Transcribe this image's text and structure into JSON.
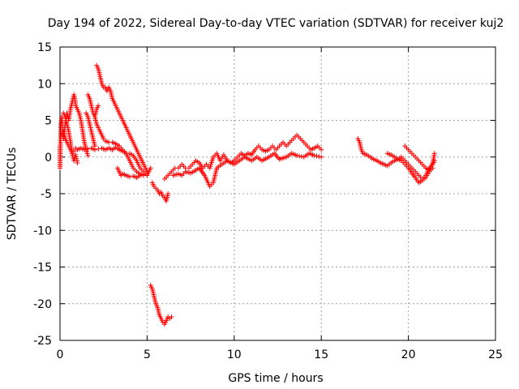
{
  "chart_data": {
    "type": "scatter",
    "title": "Day 194 of 2022, Sidereal Day-to-day VTEC variation (SDTVAR) for receiver kuj2",
    "xlabel": "GPS time / hours",
    "ylabel": "SDTVAR / TECUs",
    "xlim": [
      0,
      25
    ],
    "ylim": [
      -25,
      15
    ],
    "xticks": [
      0,
      5,
      10,
      15,
      20,
      25
    ],
    "yticks": [
      -25,
      -20,
      -15,
      -10,
      -5,
      0,
      5,
      10,
      15
    ],
    "grid": true,
    "marker": "+",
    "color": "#ff0000",
    "series": [
      {
        "name": "SDTVAR",
        "segments": [
          [
            [
              0.0,
              1.5
            ],
            [
              0.0,
              -1.5
            ],
            [
              0.05,
              4.5
            ],
            [
              0.1,
              5.5
            ],
            [
              0.15,
              4.0
            ],
            [
              0.2,
              2.5
            ],
            [
              0.3,
              4.5
            ],
            [
              0.4,
              6.0
            ],
            [
              0.5,
              5.0
            ],
            [
              0.6,
              6.5
            ],
            [
              0.7,
              7.5
            ],
            [
              0.8,
              8.5
            ],
            [
              0.85,
              8.0
            ],
            [
              0.9,
              7.0
            ],
            [
              1.0,
              6.5
            ],
            [
              1.1,
              6.0
            ],
            [
              1.2,
              5.0
            ],
            [
              1.3,
              3.5
            ],
            [
              1.4,
              2.0
            ],
            [
              1.5,
              1.0
            ],
            [
              1.6,
              0.2
            ]
          ],
          [
            [
              0.1,
              3.0
            ],
            [
              0.2,
              3.5
            ],
            [
              0.3,
              2.5
            ],
            [
              0.4,
              2.0
            ],
            [
              0.5,
              1.5
            ],
            [
              0.6,
              1.0
            ],
            [
              0.7,
              0.5
            ],
            [
              0.8,
              0.8
            ],
            [
              0.9,
              1.2
            ],
            [
              1.0,
              1.0
            ],
            [
              1.2,
              1.2
            ],
            [
              1.4,
              1.0
            ],
            [
              1.6,
              1.1
            ],
            [
              1.8,
              1.2
            ],
            [
              2.0,
              1.0
            ],
            [
              2.2,
              1.1
            ],
            [
              2.4,
              1.2
            ],
            [
              2.6,
              1.0
            ],
            [
              2.8,
              1.2
            ],
            [
              3.0,
              1.0
            ],
            [
              3.2,
              1.3
            ],
            [
              3.4,
              1.0
            ],
            [
              3.6,
              0.8
            ],
            [
              3.8,
              0.5
            ],
            [
              4.0,
              0.5
            ],
            [
              4.2,
              0.2
            ],
            [
              4.4,
              -0.5
            ],
            [
              4.6,
              -1.5
            ],
            [
              4.8,
              -2.0
            ],
            [
              5.0,
              -2.5
            ],
            [
              5.2,
              -1.5
            ]
          ],
          [
            [
              0.2,
              6.0
            ],
            [
              0.3,
              5.5
            ],
            [
              0.4,
              4.5
            ],
            [
              0.5,
              3.5
            ],
            [
              0.6,
              2.0
            ],
            [
              0.7,
              0.5
            ],
            [
              0.8,
              -0.5
            ],
            [
              0.9,
              0.3
            ],
            [
              1.0,
              -0.8
            ]
          ],
          [
            [
              1.5,
              6.0
            ],
            [
              1.6,
              5.5
            ],
            [
              1.7,
              4.5
            ],
            [
              1.8,
              3.5
            ],
            [
              1.9,
              2.5
            ],
            [
              2.0,
              1.5
            ]
          ],
          [
            [
              2.0,
              5.5
            ],
            [
              2.1,
              4.5
            ],
            [
              2.2,
              4.0
            ],
            [
              2.3,
              3.5
            ],
            [
              2.4,
              3.0
            ],
            [
              2.5,
              2.5
            ],
            [
              2.6,
              2.2
            ],
            [
              2.8,
              2.0
            ],
            [
              3.0,
              2.0
            ],
            [
              3.2,
              1.8
            ],
            [
              3.4,
              1.5
            ],
            [
              3.6,
              1.0
            ],
            [
              3.8,
              0.5
            ],
            [
              4.0,
              -0.5
            ],
            [
              4.2,
              -1.5
            ],
            [
              4.4,
              -2.0
            ],
            [
              4.6,
              -2.3
            ],
            [
              4.8,
              -2.5
            ],
            [
              5.0,
              -2.5
            ]
          ],
          [
            [
              2.1,
              12.5
            ],
            [
              2.2,
              12.0
            ],
            [
              2.3,
              11.0
            ],
            [
              2.4,
              10.0
            ],
            [
              2.5,
              9.5
            ],
            [
              2.6,
              9.5
            ],
            [
              2.7,
              9.0
            ],
            [
              2.8,
              9.5
            ],
            [
              2.9,
              9.0
            ],
            [
              3.0,
              8.0
            ],
            [
              3.1,
              7.5
            ],
            [
              3.2,
              7.0
            ],
            [
              3.3,
              6.5
            ],
            [
              3.4,
              6.0
            ],
            [
              3.5,
              5.5
            ],
            [
              3.6,
              5.0
            ],
            [
              3.7,
              4.5
            ],
            [
              3.8,
              4.0
            ],
            [
              3.9,
              3.5
            ],
            [
              4.0,
              3.0
            ],
            [
              4.1,
              2.5
            ],
            [
              4.2,
              2.0
            ],
            [
              4.3,
              1.5
            ],
            [
              4.4,
              1.0
            ],
            [
              4.5,
              0.5
            ],
            [
              4.6,
              0.0
            ],
            [
              4.7,
              -0.5
            ],
            [
              4.8,
              -1.0
            ],
            [
              4.9,
              -1.5
            ],
            [
              5.0,
              -2.0
            ]
          ],
          [
            [
              1.6,
              8.5
            ],
            [
              1.7,
              8.0
            ],
            [
              1.8,
              7.0
            ],
            [
              1.9,
              6.0
            ],
            [
              2.0,
              5.5
            ],
            [
              2.1,
              6.5
            ],
            [
              2.2,
              7.0
            ]
          ],
          [
            [
              3.3,
              -1.5
            ],
            [
              3.4,
              -2.0
            ],
            [
              3.5,
              -2.5
            ],
            [
              3.6,
              -2.3
            ],
            [
              3.8,
              -2.5
            ],
            [
              4.0,
              -2.7
            ],
            [
              4.2,
              -2.6
            ],
            [
              4.4,
              -2.8
            ],
            [
              4.6,
              -2.5
            ],
            [
              4.8,
              -2.4
            ]
          ],
          [
            [
              5.3,
              -3.5
            ],
            [
              5.4,
              -4.0
            ],
            [
              5.6,
              -4.5
            ],
            [
              5.7,
              -5.0
            ],
            [
              5.8,
              -4.8
            ],
            [
              5.9,
              -5.3
            ],
            [
              6.0,
              -5.5
            ],
            [
              6.1,
              -6.0
            ],
            [
              6.2,
              -5.0
            ]
          ],
          [
            [
              6.0,
              -3.0
            ],
            [
              6.2,
              -2.5
            ],
            [
              6.4,
              -2.0
            ],
            [
              6.6,
              -1.5
            ],
            [
              6.8,
              -1.5
            ],
            [
              7.0,
              -1.0
            ],
            [
              7.2,
              -1.5
            ],
            [
              7.4,
              -1.5
            ],
            [
              7.6,
              -1.0
            ],
            [
              7.8,
              -0.5
            ],
            [
              8.0,
              -0.8
            ],
            [
              8.2,
              -1.5
            ],
            [
              8.4,
              -1.0
            ],
            [
              8.6,
              -1.5
            ],
            [
              8.8,
              0.0
            ],
            [
              9.0,
              0.5
            ],
            [
              9.2,
              -0.5
            ],
            [
              9.4,
              0.3
            ],
            [
              9.6,
              -0.5
            ],
            [
              9.8,
              -0.8
            ],
            [
              10.0,
              -0.5
            ],
            [
              10.2,
              0.0
            ],
            [
              10.4,
              0.5
            ],
            [
              10.6,
              0.2
            ],
            [
              10.8,
              0.5
            ],
            [
              11.0,
              0.3
            ],
            [
              11.2,
              1.0
            ],
            [
              11.4,
              1.5
            ],
            [
              11.6,
              1.0
            ],
            [
              11.8,
              0.8
            ],
            [
              12.0,
              1.0
            ],
            [
              12.2,
              1.5
            ],
            [
              12.4,
              1.0
            ],
            [
              12.6,
              1.5
            ],
            [
              12.8,
              2.0
            ],
            [
              13.0,
              1.5
            ],
            [
              13.2,
              2.0
            ],
            [
              13.4,
              2.5
            ],
            [
              13.6,
              3.0
            ],
            [
              13.8,
              2.5
            ],
            [
              14.0,
              2.0
            ],
            [
              14.2,
              1.5
            ],
            [
              14.4,
              1.0
            ],
            [
              14.6,
              1.2
            ],
            [
              14.8,
              1.5
            ],
            [
              15.0,
              1.0
            ]
          ],
          [
            [
              6.5,
              -2.5
            ],
            [
              6.8,
              -2.3
            ],
            [
              7.0,
              -2.5
            ],
            [
              7.2,
              -2.0
            ],
            [
              7.5,
              -2.2
            ],
            [
              7.8,
              -1.8
            ],
            [
              8.0,
              -1.5
            ],
            [
              8.3,
              -2.5
            ],
            [
              8.5,
              -3.5
            ],
            [
              8.6,
              -4.0
            ],
            [
              8.8,
              -3.5
            ],
            [
              9.0,
              -1.5
            ],
            [
              9.3,
              -1.0
            ],
            [
              9.6,
              -0.5
            ],
            [
              10.0,
              -1.0
            ],
            [
              10.3,
              -0.5
            ],
            [
              10.6,
              0.0
            ],
            [
              11.0,
              -0.5
            ],
            [
              11.3,
              0.0
            ],
            [
              11.6,
              -0.5
            ],
            [
              12.0,
              0.0
            ],
            [
              12.3,
              0.5
            ],
            [
              12.6,
              -0.3
            ],
            [
              13.0,
              0.0
            ],
            [
              13.3,
              0.5
            ],
            [
              13.6,
              0.2
            ],
            [
              14.0,
              0.0
            ],
            [
              14.3,
              0.5
            ],
            [
              14.6,
              0.2
            ],
            [
              15.0,
              0.0
            ]
          ],
          [
            [
              5.2,
              -17.5
            ],
            [
              5.3,
              -18.0
            ],
            [
              5.4,
              -19.0
            ],
            [
              5.5,
              -20.0
            ],
            [
              5.6,
              -20.5
            ],
            [
              5.7,
              -21.5
            ],
            [
              5.8,
              -22.0
            ],
            [
              5.9,
              -22.5
            ],
            [
              6.0,
              -22.8
            ],
            [
              6.1,
              -22.3
            ],
            [
              6.2,
              -21.8
            ],
            [
              6.3,
              -22.0
            ],
            [
              6.4,
              -21.8
            ]
          ],
          [
            [
              17.1,
              2.5
            ],
            [
              17.2,
              2.0
            ],
            [
              17.3,
              1.0
            ],
            [
              17.4,
              0.5
            ],
            [
              17.6,
              0.3
            ],
            [
              17.8,
              0.0
            ],
            [
              18.0,
              -0.3
            ],
            [
              18.2,
              -0.5
            ],
            [
              18.4,
              -0.8
            ],
            [
              18.6,
              -1.0
            ],
            [
              18.8,
              -1.2
            ],
            [
              19.0,
              -0.8
            ],
            [
              19.2,
              -0.5
            ],
            [
              19.4,
              -0.3
            ],
            [
              19.6,
              0.0
            ],
            [
              19.8,
              -0.5
            ],
            [
              20.0,
              -1.0
            ],
            [
              20.2,
              -1.5
            ],
            [
              20.4,
              -2.0
            ],
            [
              20.6,
              -2.5
            ],
            [
              20.8,
              -3.0
            ],
            [
              21.0,
              -2.5
            ],
            [
              21.2,
              -1.5
            ],
            [
              21.4,
              -1.0
            ],
            [
              21.5,
              -0.5
            ]
          ],
          [
            [
              18.8,
              0.5
            ],
            [
              19.0,
              0.3
            ],
            [
              19.2,
              0.0
            ],
            [
              19.4,
              -0.3
            ],
            [
              19.6,
              -0.5
            ],
            [
              19.8,
              -1.0
            ],
            [
              20.0,
              -1.5
            ],
            [
              20.2,
              -2.2
            ],
            [
              20.4,
              -2.8
            ],
            [
              20.6,
              -3.5
            ],
            [
              20.8,
              -3.2
            ],
            [
              21.0,
              -2.8
            ],
            [
              21.2,
              -2.0
            ],
            [
              21.4,
              -1.5
            ]
          ],
          [
            [
              19.8,
              1.5
            ],
            [
              20.0,
              1.0
            ],
            [
              20.2,
              0.5
            ],
            [
              20.4,
              0.0
            ],
            [
              20.6,
              -0.5
            ],
            [
              20.8,
              -1.0
            ],
            [
              21.0,
              -1.5
            ],
            [
              21.2,
              -1.8
            ],
            [
              21.4,
              -0.8
            ],
            [
              21.5,
              0.5
            ]
          ]
        ]
      }
    ]
  }
}
